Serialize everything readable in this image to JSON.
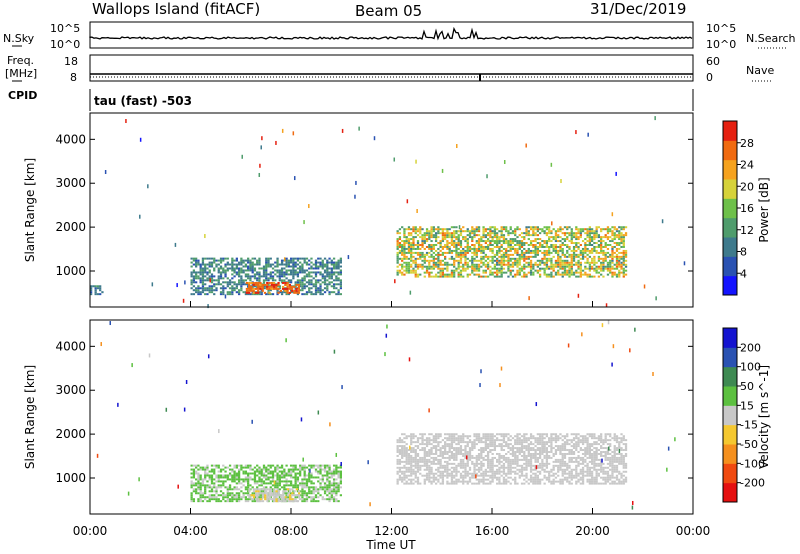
{
  "header": {
    "site": "Wallops Island (fitACF)",
    "beam": "Beam 05",
    "date": "31/Dec/2019"
  },
  "status_panels": {
    "nsky": {
      "label": "N.Sky",
      "left_ticks": [
        "10^5",
        "10^0"
      ],
      "right_ticks": [
        "10^5",
        "10^0"
      ],
      "right_label": "N.Search"
    },
    "freq": {
      "label_line1": "Freq.",
      "label_line2": "[MHz]",
      "left_ticks": [
        "18",
        "8"
      ],
      "right_ticks": [
        "60",
        "0"
      ],
      "right_label": "Nave"
    },
    "cpid": {
      "label": "CPID",
      "text": "tau (fast) -503"
    }
  },
  "x_axis": {
    "title": "Time UT",
    "ticks": [
      "00:00",
      "04:00",
      "08:00",
      "12:00",
      "16:00",
      "20:00",
      "00:00"
    ]
  },
  "chart_data": [
    {
      "type": "heatmap",
      "panel": "power",
      "ylabel": "Slant Range [km]",
      "yticks": [
        "1000",
        "2000",
        "3000",
        "4000"
      ],
      "ylim": [
        180,
        4600
      ],
      "xlim_hours": [
        0,
        24
      ],
      "colorbar": {
        "label": "Power [dB]",
        "ticks": [
          "4",
          "8",
          "12",
          "16",
          "20",
          "24",
          "28"
        ],
        "range": [
          0,
          32
        ],
        "colors": [
          "#1414ff",
          "#2a52b2",
          "#3e7a8c",
          "#4f9c6c",
          "#6ec04a",
          "#d6d23a",
          "#f5a21e",
          "#f06a10",
          "#e52010"
        ]
      },
      "echo_regions": [
        {
          "t0": 4.0,
          "t1": 10.0,
          "r0": 450,
          "r1": 1300,
          "power": [
            6,
            14
          ]
        },
        {
          "t0": 6.2,
          "t1": 8.3,
          "r0": 480,
          "r1": 720,
          "power": [
            24,
            30
          ]
        },
        {
          "t0": 12.2,
          "t1": 21.3,
          "r0": 850,
          "r1": 2000,
          "power": [
            10,
            26
          ]
        },
        {
          "t0": 0.0,
          "t1": 0.5,
          "r0": 450,
          "r1": 650,
          "power": [
            6,
            12
          ]
        }
      ]
    },
    {
      "type": "heatmap",
      "panel": "velocity",
      "ylabel": "Slant Range [km]",
      "yticks": [
        "1000",
        "2000",
        "3000",
        "4000"
      ],
      "ylim": [
        180,
        4600
      ],
      "xlim_hours": [
        0,
        24
      ],
      "colorbar": {
        "label": "Velocity [m s^-1]",
        "ticks": [
          "200",
          "100",
          "50",
          "15",
          "-15",
          "-50",
          "-100",
          "-200"
        ],
        "range": [
          -250,
          250
        ],
        "colors": [
          "#e51010",
          "#f04a10",
          "#f5901e",
          "#f5c830",
          "#c8c8c8",
          "#5cc040",
          "#3e8a52",
          "#2a52b2",
          "#1414d0"
        ]
      },
      "echo_regions": [
        {
          "t0": 4.0,
          "t1": 10.0,
          "r0": 450,
          "r1": 1300,
          "velocity": [
            15,
            60
          ]
        },
        {
          "t0": 6.3,
          "t1": 8.3,
          "r0": 450,
          "r1": 750,
          "velocity": [
            -40,
            15
          ]
        },
        {
          "t0": 12.2,
          "t1": 21.3,
          "r0": 850,
          "r1": 2000,
          "velocity": [
            -15,
            15
          ]
        }
      ]
    }
  ]
}
